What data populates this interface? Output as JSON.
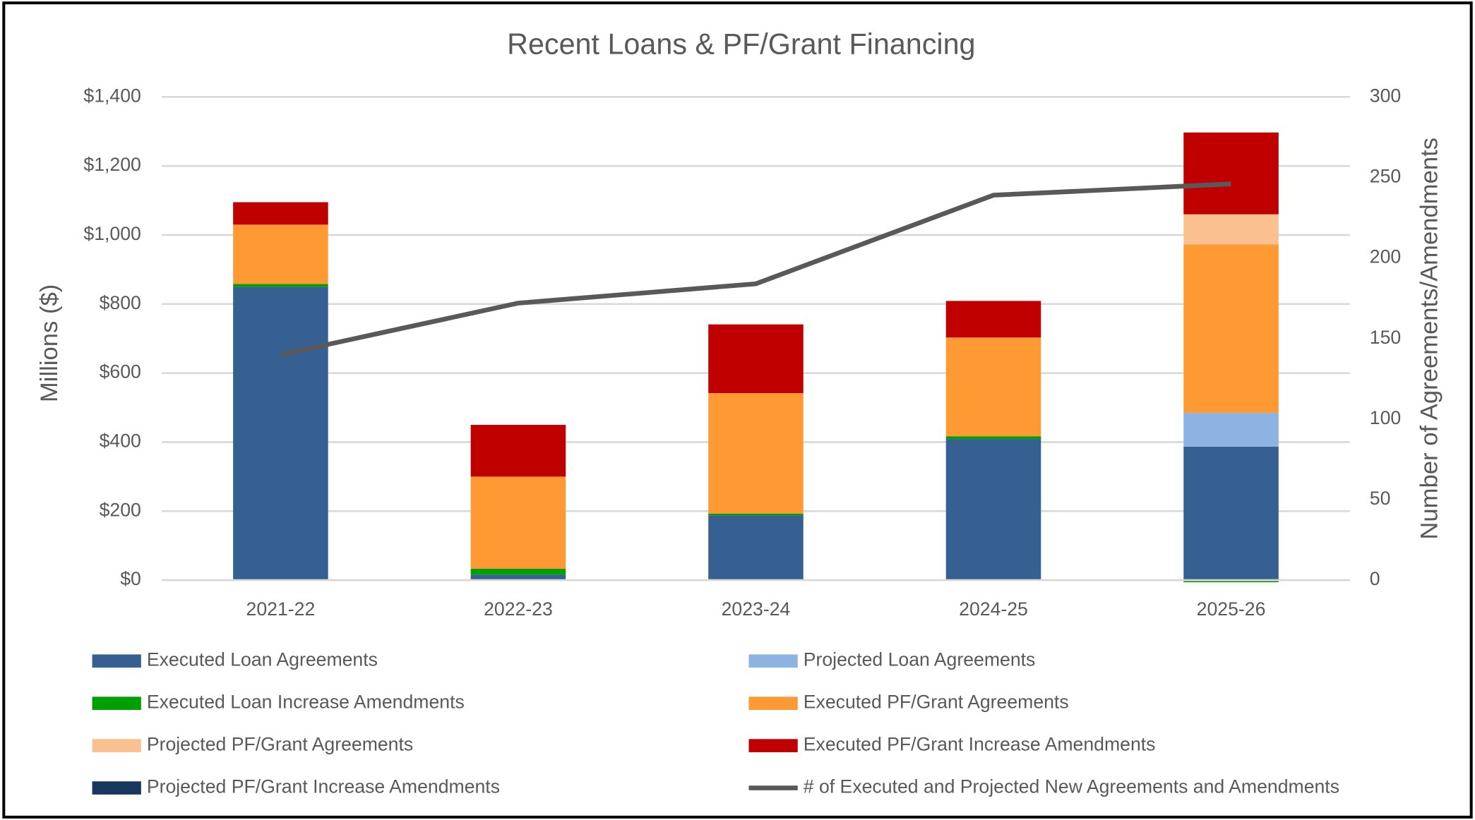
{
  "chart_data": {
    "type": "bar",
    "stacked": true,
    "title": "Recent Loans & PF/Grant Financing",
    "y_label": "Millions ($)",
    "y2_label": "Number of Agreements/Amendments",
    "categories": [
      "2021-22",
      "2022-23",
      "2023-24",
      "2024-25",
      "2025-26"
    ],
    "series": [
      {
        "name": "Executed Loan Agreements",
        "color": "#365f92",
        "values": [
          850,
          16,
          188,
          409,
          387
        ]
      },
      {
        "name": "Projected Loan Agreements",
        "color": "#8db3e2",
        "values": [
          0,
          0,
          0,
          0,
          98
        ]
      },
      {
        "name": "Executed Loan Increase Amendments",
        "color": "#00a000",
        "values": [
          8,
          17,
          5,
          8,
          -6
        ]
      },
      {
        "name": "Executed PF/Grant Agreements",
        "color": "#ff9933",
        "values": [
          172,
          267,
          349,
          286,
          488
        ]
      },
      {
        "name": "Projected PF/Grant Agreements",
        "color": "#fac090",
        "values": [
          0,
          0,
          0,
          0,
          87
        ]
      },
      {
        "name": "Executed PF/Grant Increase Amendments",
        "color": "#c00000",
        "values": [
          65,
          150,
          199,
          106,
          237
        ]
      },
      {
        "name": "Projected PF/Grant Increase Amendments",
        "color": "#17375e",
        "values": [
          0,
          0,
          0,
          0,
          0
        ]
      },
      {
        "name": "# of Executed and Projected New Agreements and Amendments",
        "type": "line",
        "axis": "y2",
        "color": "#595959",
        "values": [
          140,
          172,
          184,
          239,
          246
        ]
      }
    ],
    "ylim": [
      0,
      1400
    ],
    "yticks": [
      {
        "value": 0,
        "label": "$0"
      },
      {
        "value": 200,
        "label": "$200"
      },
      {
        "value": 400,
        "label": "$400"
      },
      {
        "value": 600,
        "label": "$600"
      },
      {
        "value": 800,
        "label": "$800"
      },
      {
        "value": 1000,
        "label": "$1,000"
      },
      {
        "value": 1200,
        "label": "$1,200"
      },
      {
        "value": 1400,
        "label": "$1,400"
      }
    ],
    "y2lim": [
      0,
      300
    ],
    "y2ticks": [
      0,
      50,
      100,
      150,
      200,
      250,
      300
    ],
    "grid": true,
    "legend": "bottom"
  }
}
